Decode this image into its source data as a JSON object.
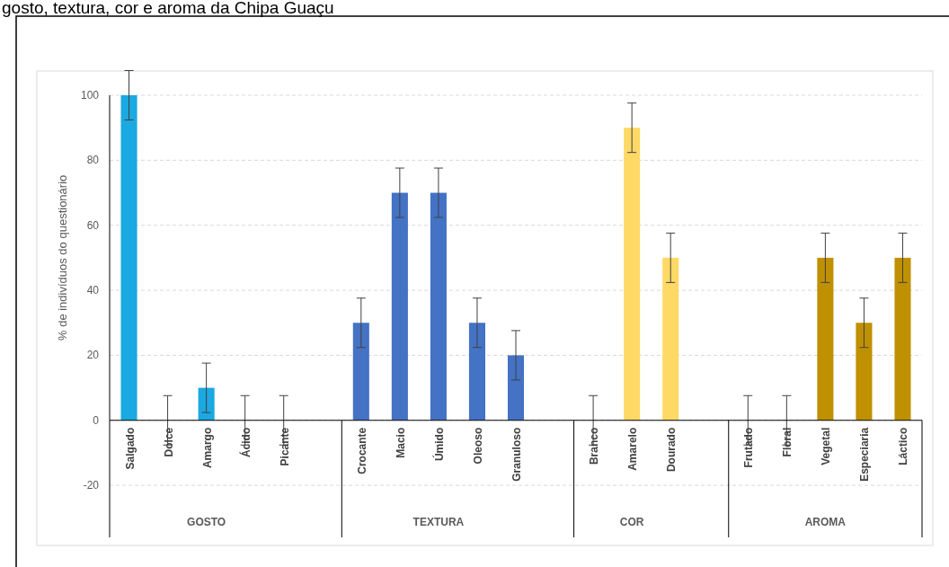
{
  "chart_data": {
    "type": "bar",
    "title": "gosto, textura, cor e aroma da Chipa Guaçu",
    "ylabel": "% de indivíduos do questionário",
    "categories": [
      "Salgado",
      "Dolce",
      "Amargo",
      "Ácido",
      "Picante",
      null,
      "Crocante",
      "Macio",
      "Úmido",
      "Oleoso",
      "Granuloso",
      null,
      "Branco",
      "Amarelo",
      "Dourado",
      null,
      "Frutado",
      "Floral",
      "Vegetal",
      "Especiaria",
      "Láctico"
    ],
    "values": [
      100,
      0,
      10,
      0,
      0,
      null,
      30,
      70,
      70,
      30,
      20,
      null,
      0,
      90,
      50,
      null,
      0,
      0,
      50,
      30,
      50
    ],
    "errors": [
      7.6,
      7.6,
      7.6,
      7.6,
      7.6,
      null,
      7.6,
      7.6,
      7.6,
      7.6,
      7.6,
      null,
      7.6,
      7.6,
      7.6,
      null,
      7.6,
      7.6,
      7.6,
      7.6,
      7.6
    ],
    "colors": [
      "#1aa9e0",
      "#1aa9e0",
      "#1aa9e0",
      "#1aa9e0",
      "#1aa9e0",
      null,
      "#4472c4",
      "#4472c4",
      "#4472c4",
      "#4472c4",
      "#4472c4",
      null,
      "#ffd966",
      "#ffd966",
      "#ffd966",
      null,
      "#bf9000",
      "#bf9000",
      "#bf9000",
      "#bf9000",
      "#bf9000"
    ],
    "annotations": [
      "GOSTO",
      "TEXTURA",
      "COR",
      "AROMA"
    ],
    "ylim": [
      -36,
      100
    ],
    "yticks": [
      -20,
      0,
      20,
      40,
      60,
      80,
      100
    ],
    "grid": "y"
  }
}
